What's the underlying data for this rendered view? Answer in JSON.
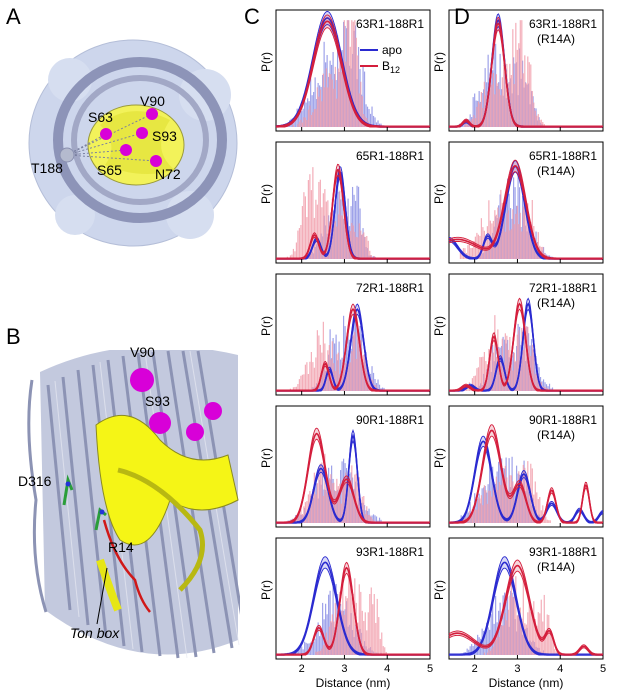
{
  "panel_labels": {
    "a": "A",
    "b": "B",
    "c": "C",
    "d": "D"
  },
  "structure_a": {
    "labels": {
      "v90": "V90",
      "s63": "S63",
      "s93": "S93",
      "t188": "T188",
      "s65": "S65",
      "n72": "N72"
    }
  },
  "structure_b": {
    "labels": {
      "v90": "V90",
      "s93": "S93",
      "d316": "D316",
      "r14": "R14",
      "ton_box": "Ton box"
    }
  },
  "colors": {
    "apo": "#2a2ad0",
    "b12": "#d41e3c",
    "apo_hist": "#8e92e6",
    "b12_hist": "#f2a0ad",
    "protein": "#aab0cc",
    "helix": "#f5f516",
    "sphere": "#d800d8"
  },
  "legend": {
    "apo": "apo",
    "b12_base": "B",
    "b12_sub": "12"
  },
  "axes": {
    "ylabel": "P(r)",
    "xlabel": "Distance (nm)",
    "xticks": [
      "2",
      "3",
      "4",
      "5"
    ],
    "xlim": [
      1.4,
      5.0
    ]
  },
  "chart_data": [
    {
      "type": "line",
      "column": "C",
      "title": "63R1-188R1",
      "title2": "",
      "series": [
        {
          "name": "apo",
          "peaks": [
            [
              2.6,
              0.34,
              1.0
            ]
          ]
        },
        {
          "name": "B12",
          "peaks": [
            [
              2.6,
              0.33,
              0.97
            ]
          ]
        }
      ],
      "hist": {
        "apo": [
          [
            2.6,
            0.4,
            0.55
          ],
          [
            3.2,
            0.25,
            0.55
          ]
        ],
        "b12": [
          [
            3.15,
            0.15,
            0.95
          ],
          [
            2.7,
            0.35,
            0.4
          ]
        ]
      }
    },
    {
      "type": "line",
      "column": "C",
      "title": "65R1-188R1",
      "title2": "",
      "series": [
        {
          "name": "apo",
          "peaks": [
            [
              2.9,
              0.12,
              0.8
            ],
            [
              2.35,
              0.1,
              0.18
            ]
          ]
        },
        {
          "name": "B12",
          "peaks": [
            [
              2.85,
              0.13,
              0.82
            ],
            [
              2.3,
              0.1,
              0.22
            ]
          ]
        }
      ],
      "hist": {
        "apo": [
          [
            2.9,
            0.3,
            0.6
          ],
          [
            3.3,
            0.1,
            0.3
          ]
        ],
        "b12": [
          [
            2.2,
            0.2,
            0.55
          ],
          [
            2.8,
            0.35,
            0.45
          ],
          [
            3.4,
            0.1,
            0.3
          ]
        ]
      }
    },
    {
      "type": "line",
      "column": "C",
      "title": "72R1-188R1",
      "title2": "",
      "series": [
        {
          "name": "apo",
          "peaks": [
            [
              3.3,
              0.15,
              0.75
            ],
            [
              2.65,
              0.08,
              0.2
            ]
          ]
        },
        {
          "name": "B12",
          "peaks": [
            [
              3.2,
              0.15,
              0.75
            ],
            [
              2.55,
              0.09,
              0.25
            ]
          ]
        }
      ],
      "hist": {
        "apo": [
          [
            3.2,
            0.3,
            0.5
          ],
          [
            2.7,
            0.2,
            0.3
          ]
        ],
        "b12": [
          [
            2.5,
            0.3,
            0.45
          ],
          [
            3.3,
            0.2,
            0.4
          ]
        ]
      }
    },
    {
      "type": "line",
      "column": "C",
      "title": "90R1-188R1",
      "title2": "",
      "series": [
        {
          "name": "apo",
          "peaks": [
            [
              3.2,
              0.1,
              0.8
            ],
            [
              2.45,
              0.17,
              0.5
            ]
          ]
        },
        {
          "name": "B12",
          "peaks": [
            [
              2.35,
              0.2,
              0.82
            ],
            [
              3.05,
              0.17,
              0.4
            ]
          ]
        }
      ],
      "hist": {
        "apo": [
          [
            2.8,
            0.45,
            0.45
          ]
        ],
        "b12": [
          [
            2.5,
            0.3,
            0.45
          ],
          [
            3.2,
            0.2,
            0.4
          ]
        ]
      }
    },
    {
      "type": "line",
      "column": "C",
      "title": "93R1-188R1",
      "title2": "",
      "series": [
        {
          "name": "apo",
          "peaks": [
            [
              2.55,
              0.27,
              0.85
            ]
          ]
        },
        {
          "name": "B12",
          "peaks": [
            [
              3.05,
              0.16,
              0.8
            ],
            [
              2.4,
              0.12,
              0.25
            ]
          ]
        }
      ],
      "hist": {
        "apo": [
          [
            2.8,
            0.4,
            0.45
          ]
        ],
        "b12": [
          [
            3.1,
            0.3,
            0.65
          ],
          [
            3.7,
            0.12,
            0.4
          ]
        ]
      }
    },
    {
      "type": "line",
      "column": "D",
      "title": "63R1-188R1",
      "title2": "(R14A)",
      "series": [
        {
          "name": "apo",
          "peaks": [
            [
              2.55,
              0.15,
              0.98
            ],
            [
              1.8,
              0.08,
              0.05
            ]
          ]
        },
        {
          "name": "B12",
          "peaks": [
            [
              2.55,
              0.15,
              0.95
            ],
            [
              1.8,
              0.08,
              0.06
            ]
          ]
        }
      ],
      "hist": {
        "apo": [
          [
            2.4,
            0.3,
            0.55
          ],
          [
            3.1,
            0.2,
            0.5
          ]
        ],
        "b12": [
          [
            3.1,
            0.2,
            0.8
          ],
          [
            2.5,
            0.3,
            0.45
          ]
        ]
      }
    },
    {
      "type": "line",
      "column": "D",
      "title": "65R1-188R1",
      "title2": "(R14A)",
      "series": [
        {
          "name": "apo",
          "peaks": [
            [
              2.95,
              0.22,
              0.85
            ],
            [
              2.3,
              0.1,
              0.2
            ],
            [
              1.4,
              0.2,
              0.18
            ]
          ]
        },
        {
          "name": "B12",
          "peaks": [
            [
              2.95,
              0.25,
              0.85
            ],
            [
              1.6,
              0.5,
              0.18
            ]
          ]
        }
      ],
      "hist": {
        "apo": [
          [
            2.9,
            0.35,
            0.6
          ]
        ],
        "b12": [
          [
            2.6,
            0.45,
            0.45
          ],
          [
            3.3,
            0.15,
            0.3
          ]
        ]
      }
    },
    {
      "type": "line",
      "column": "D",
      "title": "72R1-188R1",
      "title2": "(R14A)",
      "series": [
        {
          "name": "apo",
          "peaks": [
            [
              3.25,
              0.12,
              0.8
            ],
            [
              2.6,
              0.1,
              0.3
            ],
            [
              1.9,
              0.1,
              0.05
            ]
          ]
        },
        {
          "name": "B12",
          "peaks": [
            [
              3.05,
              0.14,
              0.8
            ],
            [
              2.45,
              0.1,
              0.5
            ],
            [
              1.8,
              0.1,
              0.05
            ]
          ]
        }
      ],
      "hist": {
        "apo": [
          [
            3.1,
            0.3,
            0.5
          ],
          [
            2.5,
            0.2,
            0.3
          ]
        ],
        "b12": [
          [
            2.5,
            0.3,
            0.5
          ],
          [
            3.2,
            0.2,
            0.4
          ]
        ]
      }
    },
    {
      "type": "line",
      "column": "D",
      "title": "90R1-188R1",
      "title2": "(R14A)",
      "series": [
        {
          "name": "apo",
          "peaks": [
            [
              2.2,
              0.2,
              0.75
            ],
            [
              3.15,
              0.15,
              0.45
            ],
            [
              3.8,
              0.12,
              0.18
            ],
            [
              4.45,
              0.1,
              0.12
            ],
            [
              5.0,
              0.1,
              0.1
            ]
          ]
        },
        {
          "name": "B12",
          "peaks": [
            [
              2.4,
              0.22,
              0.85
            ],
            [
              3.05,
              0.15,
              0.35
            ],
            [
              3.8,
              0.1,
              0.3
            ],
            [
              4.6,
              0.08,
              0.35
            ]
          ]
        }
      ],
      "hist": {
        "apo": [
          [
            2.5,
            0.4,
            0.45
          ],
          [
            3.1,
            0.2,
            0.3
          ]
        ],
        "b12": [
          [
            2.6,
            0.4,
            0.4
          ],
          [
            3.3,
            0.2,
            0.3
          ]
        ]
      }
    },
    {
      "type": "line",
      "column": "D",
      "title": "93R1-188R1",
      "title2": "(R14A)",
      "series": [
        {
          "name": "apo",
          "peaks": [
            [
              2.7,
              0.27,
              0.85
            ]
          ]
        },
        {
          "name": "B12",
          "peaks": [
            [
              3.0,
              0.28,
              0.82
            ],
            [
              1.6,
              0.4,
              0.2
            ],
            [
              3.75,
              0.1,
              0.2
            ],
            [
              4.55,
              0.1,
              0.08
            ]
          ]
        }
      ],
      "hist": {
        "apo": [
          [
            2.7,
            0.4,
            0.45
          ]
        ],
        "b12": [
          [
            3.0,
            0.3,
            0.55
          ],
          [
            3.6,
            0.15,
            0.35
          ]
        ]
      }
    }
  ]
}
